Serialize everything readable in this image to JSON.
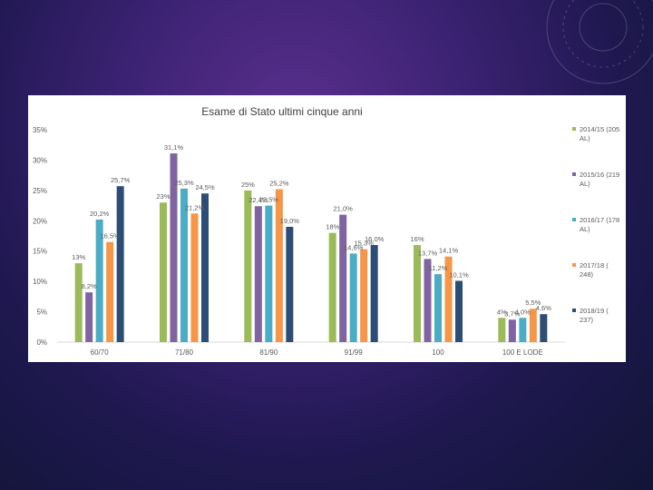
{
  "chart_data": {
    "type": "bar",
    "title": "Esame di Stato ultimi cinque anni",
    "xlabel": "",
    "ylabel": "",
    "ylim": [
      0,
      35
    ],
    "yticks": [
      "0%",
      "5%",
      "10%",
      "15%",
      "20%",
      "25%",
      "30%",
      "35%"
    ],
    "categories": [
      "60/70",
      "71/80",
      "81/90",
      "91/99",
      "100",
      "100 E LODE"
    ],
    "series": [
      {
        "name": "2014/15 (205 AL)",
        "color": "#9bbb59",
        "values": [
          13,
          23,
          25,
          18,
          16,
          4
        ],
        "labels": [
          "13%",
          "23%",
          "25%",
          "18%",
          "16%",
          "4%"
        ]
      },
      {
        "name": "2015/16 (219 AL)",
        "color": "#8064a2",
        "values": [
          8.2,
          31.1,
          22.4,
          21,
          13.7,
          3.7
        ],
        "labels": [
          "8,2%",
          "31,1%",
          "22,4%",
          "21,0%",
          "13,7%",
          "3,7%"
        ]
      },
      {
        "name": "2016/17 (178 AL)",
        "color": "#4bacc6",
        "values": [
          20.2,
          25.3,
          22.5,
          14.6,
          11.2,
          4.0
        ],
        "labels": [
          "20,2%",
          "25,3%",
          "22,5%",
          "14,6%",
          "11,2%",
          "4,0%"
        ]
      },
      {
        "name": "2017/18 ( 248)",
        "color": "#f79646",
        "values": [
          16.5,
          21.2,
          25.2,
          15.3,
          14.1,
          5.5
        ],
        "labels": [
          "16,5%",
          "21,2%",
          "25,2%",
          "15,3%",
          "14,1%",
          "5,5%"
        ]
      },
      {
        "name": "2018/19 ( 237)",
        "color": "#2c4d75",
        "values": [
          25.7,
          24.5,
          19.0,
          16.0,
          10.1,
          4.6
        ],
        "labels": [
          "25,7%",
          "24,5%",
          "19,0%",
          "16,0%",
          "10,1%",
          "4,6%"
        ]
      }
    ],
    "grid": false,
    "legend": "right"
  }
}
